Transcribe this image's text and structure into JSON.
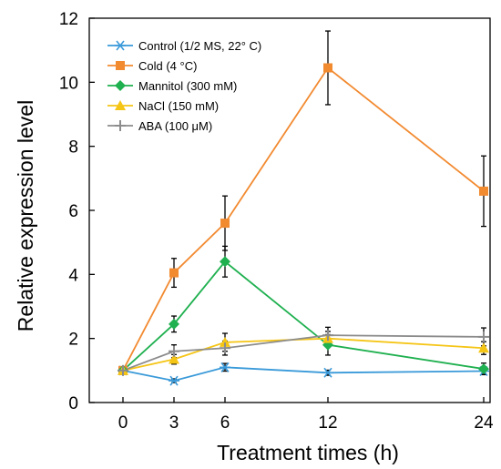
{
  "chart_data": {
    "type": "line",
    "title": "",
    "xlabel": "Treatment times (h)",
    "ylabel": "Relative expression level",
    "x": [
      0,
      3,
      6,
      12,
      24
    ],
    "x_tick_labels": [
      "0",
      "3",
      "6",
      "12",
      "24"
    ],
    "y_ticks": [
      0,
      2,
      4,
      6,
      8,
      10,
      12
    ],
    "ylim": [
      0,
      12
    ],
    "grid": false,
    "legend_position": "top-left",
    "series": [
      {
        "name": "Control (1/2 MS, 22° C)",
        "color": "#3a9ad9",
        "marker": "asterisk",
        "values": [
          1.0,
          0.68,
          1.1,
          0.93,
          0.98
        ],
        "errors": [
          0.1,
          0.06,
          0.12,
          0.08,
          0.08
        ]
      },
      {
        "name": "Cold (4 °C)",
        "color": "#f28a30",
        "marker": "square",
        "values": [
          1.0,
          4.05,
          5.6,
          10.45,
          6.6
        ],
        "errors": [
          0.12,
          0.45,
          0.85,
          1.15,
          1.1
        ]
      },
      {
        "name": "Mannitol (300 mM)",
        "color": "#1fb04f",
        "marker": "diamond",
        "values": [
          1.0,
          2.45,
          4.4,
          1.8,
          1.05
        ],
        "errors": [
          0.1,
          0.25,
          0.48,
          0.32,
          0.18
        ]
      },
      {
        "name": "NaCl (150 mM)",
        "color": "#f5c516",
        "marker": "triangle",
        "values": [
          1.0,
          1.35,
          1.88,
          2.0,
          1.7
        ],
        "errors": [
          0.1,
          0.15,
          0.28,
          0.22,
          0.2
        ]
      },
      {
        "name": "ABA (100 μM)",
        "color": "#8c8c8c",
        "marker": "plus",
        "values": [
          1.0,
          1.6,
          1.7,
          2.1,
          2.05
        ],
        "errors": [
          0.1,
          0.2,
          0.22,
          0.25,
          0.28
        ]
      }
    ]
  }
}
